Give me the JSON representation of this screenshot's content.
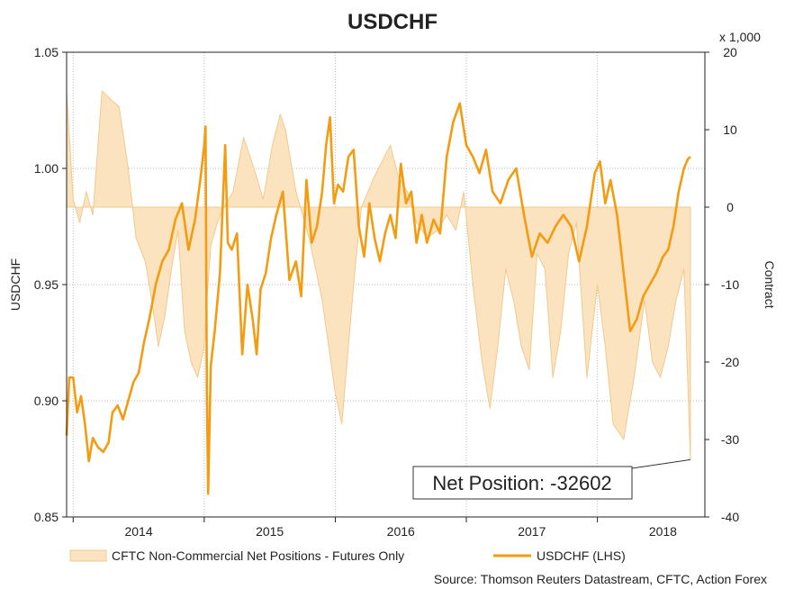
{
  "chart_data": {
    "type": "line",
    "title": "USDCHF",
    "ylabel": "USDCHF",
    "y2label": "Contract",
    "y2_multiplier_label": "x 1,000",
    "ylim": [
      0.85,
      1.05
    ],
    "y2lim": [
      -40,
      20
    ],
    "yticks": [
      "0.85",
      "0.90",
      "0.95",
      "1.00",
      "1.05"
    ],
    "y2ticks": [
      "-40",
      "-30",
      "-20",
      "-10",
      "0",
      "10",
      "20"
    ],
    "xlim": [
      2013.45,
      2018.32
    ],
    "xticks": [
      {
        "label": "2014",
        "pos": 2014.0
      },
      {
        "label": "2015",
        "pos": 2015.0
      },
      {
        "label": "2016",
        "pos": 2016.0
      },
      {
        "label": "2017",
        "pos": 2017.0
      },
      {
        "label": "2018",
        "pos": 2018.0
      }
    ],
    "year_boundaries": [
      2013.5,
      2014.5,
      2015.5,
      2016.5,
      2017.5
    ],
    "grid": true,
    "legend_position": "bottom",
    "colors": {
      "usdchf": "#f39c12",
      "cftc_fill": "#fbe3c0",
      "cftc_edge": "#f2c98c"
    },
    "series": [
      {
        "name": "CFTC Non-Commercial Net Positions - Futures Only",
        "axis": "right",
        "style": "area",
        "x": [
          2013.45,
          2013.5,
          2013.55,
          2013.6,
          2013.65,
          2013.72,
          2013.78,
          2013.85,
          2013.92,
          2013.98,
          2014.05,
          2014.1,
          2014.15,
          2014.2,
          2014.25,
          2014.3,
          2014.35,
          2014.4,
          2014.45,
          2014.5,
          2014.52,
          2014.55,
          2014.6,
          2014.65,
          2014.72,
          2014.8,
          2014.88,
          2014.95,
          2015.02,
          2015.08,
          2015.12,
          2015.16,
          2015.2,
          2015.25,
          2015.3,
          2015.35,
          2015.4,
          2015.45,
          2015.5,
          2015.55,
          2015.6,
          2015.65,
          2015.7,
          2015.75,
          2015.8,
          2015.86,
          2015.92,
          2015.98,
          2016.05,
          2016.12,
          2016.2,
          2016.28,
          2016.35,
          2016.42,
          2016.48,
          2016.55,
          2016.62,
          2016.68,
          2016.74,
          2016.8,
          2016.86,
          2016.92,
          2016.98,
          2017.04,
          2017.1,
          2017.16,
          2017.22,
          2017.28,
          2017.34,
          2017.42,
          2017.5,
          2017.56,
          2017.62,
          2017.7,
          2017.78,
          2017.86,
          2017.92,
          2017.98,
          2018.04,
          2018.1,
          2018.16,
          2018.21
        ],
        "values": [
          15,
          1,
          -2,
          2,
          -1,
          15,
          14,
          13,
          5,
          -4,
          -7,
          -12,
          -18,
          -14,
          -8,
          -3,
          -16,
          -20,
          -22,
          -18,
          -12,
          -5,
          -2,
          0,
          2,
          9,
          5,
          1,
          8,
          12,
          10,
          6,
          2,
          -1,
          -4,
          -8,
          -12,
          -18,
          -24,
          -28,
          -18,
          -8,
          0,
          2,
          4,
          6,
          8,
          4,
          2,
          -2,
          -4,
          -3,
          -1,
          -3,
          2,
          -10,
          -20,
          -26,
          -18,
          -8,
          -12,
          -18,
          -21,
          -6,
          -8,
          -22,
          -16,
          -6,
          -2,
          -22,
          -10,
          -18,
          -28,
          -30,
          -22,
          -12,
          -20,
          -22,
          -18,
          -12,
          -8,
          -32.602
        ]
      },
      {
        "name": "USDCHF (LHS)",
        "axis": "left",
        "style": "line",
        "x": [
          2013.45,
          2013.47,
          2013.5,
          2013.53,
          2013.56,
          2013.59,
          2013.62,
          2013.65,
          2013.69,
          2013.73,
          2013.77,
          2013.8,
          2013.84,
          2013.88,
          2013.92,
          2013.96,
          2014.0,
          2014.04,
          2014.08,
          2014.13,
          2014.18,
          2014.23,
          2014.28,
          2014.33,
          2014.38,
          2014.43,
          2014.47,
          2014.5,
          2014.51,
          2014.52,
          2014.53,
          2014.55,
          2014.58,
          2014.62,
          2014.66,
          2014.68,
          2014.71,
          2014.75,
          2014.79,
          2014.83,
          2014.87,
          2014.9,
          2014.93,
          2014.97,
          2015.01,
          2015.05,
          2015.1,
          2015.15,
          2015.2,
          2015.24,
          2015.28,
          2015.32,
          2015.36,
          2015.4,
          2015.43,
          2015.46,
          2015.49,
          2015.52,
          2015.56,
          2015.6,
          2015.64,
          2015.68,
          2015.72,
          2015.76,
          2015.8,
          2015.84,
          2015.88,
          2015.92,
          2015.96,
          2016.0,
          2016.04,
          2016.08,
          2016.12,
          2016.16,
          2016.2,
          2016.25,
          2016.3,
          2016.35,
          2016.4,
          2016.45,
          2016.5,
          2016.55,
          2016.6,
          2016.65,
          2016.7,
          2016.76,
          2016.82,
          2016.88,
          2016.94,
          2017.0,
          2017.06,
          2017.12,
          2017.18,
          2017.24,
          2017.3,
          2017.36,
          2017.42,
          2017.48,
          2017.52,
          2017.56,
          2017.6,
          2017.65,
          2017.7,
          2017.75,
          2017.8,
          2017.85,
          2017.9,
          2017.95,
          2018.0,
          2018.04,
          2018.08,
          2018.12,
          2018.16,
          2018.19,
          2018.21
        ],
        "values": [
          0.885,
          0.91,
          0.91,
          0.895,
          0.902,
          0.89,
          0.874,
          0.884,
          0.88,
          0.878,
          0.882,
          0.895,
          0.898,
          0.892,
          0.9,
          0.908,
          0.912,
          0.925,
          0.935,
          0.95,
          0.96,
          0.965,
          0.978,
          0.985,
          0.965,
          0.978,
          0.995,
          1.01,
          1.018,
          0.905,
          0.86,
          0.915,
          0.93,
          0.955,
          1.01,
          0.968,
          0.965,
          0.972,
          0.92,
          0.95,
          0.935,
          0.92,
          0.948,
          0.955,
          0.97,
          0.98,
          0.99,
          0.952,
          0.96,
          0.945,
          0.995,
          0.968,
          0.975,
          0.99,
          1.01,
          1.022,
          0.985,
          0.993,
          0.99,
          1.005,
          1.008,
          0.975,
          0.962,
          0.985,
          0.97,
          0.96,
          0.972,
          0.98,
          0.97,
          1.002,
          0.985,
          0.99,
          0.968,
          0.98,
          0.968,
          0.978,
          0.972,
          1.005,
          1.02,
          1.028,
          1.01,
          1.005,
          0.998,
          1.008,
          0.99,
          0.985,
          0.995,
          1.0,
          0.98,
          0.962,
          0.972,
          0.968,
          0.975,
          0.98,
          0.975,
          0.96,
          0.975,
          0.998,
          1.003,
          0.985,
          0.995,
          0.98,
          0.955,
          0.93,
          0.935,
          0.945,
          0.95,
          0.955,
          0.962,
          0.965,
          0.975,
          0.99,
          1.0,
          1.004,
          1.005
        ]
      }
    ],
    "annotation": {
      "label": "Net Position: -32602",
      "x": 2018.21,
      "y2": -32.602
    },
    "source": "Source: Thomson Reuters Datastream, CFTC, Action Forex"
  }
}
